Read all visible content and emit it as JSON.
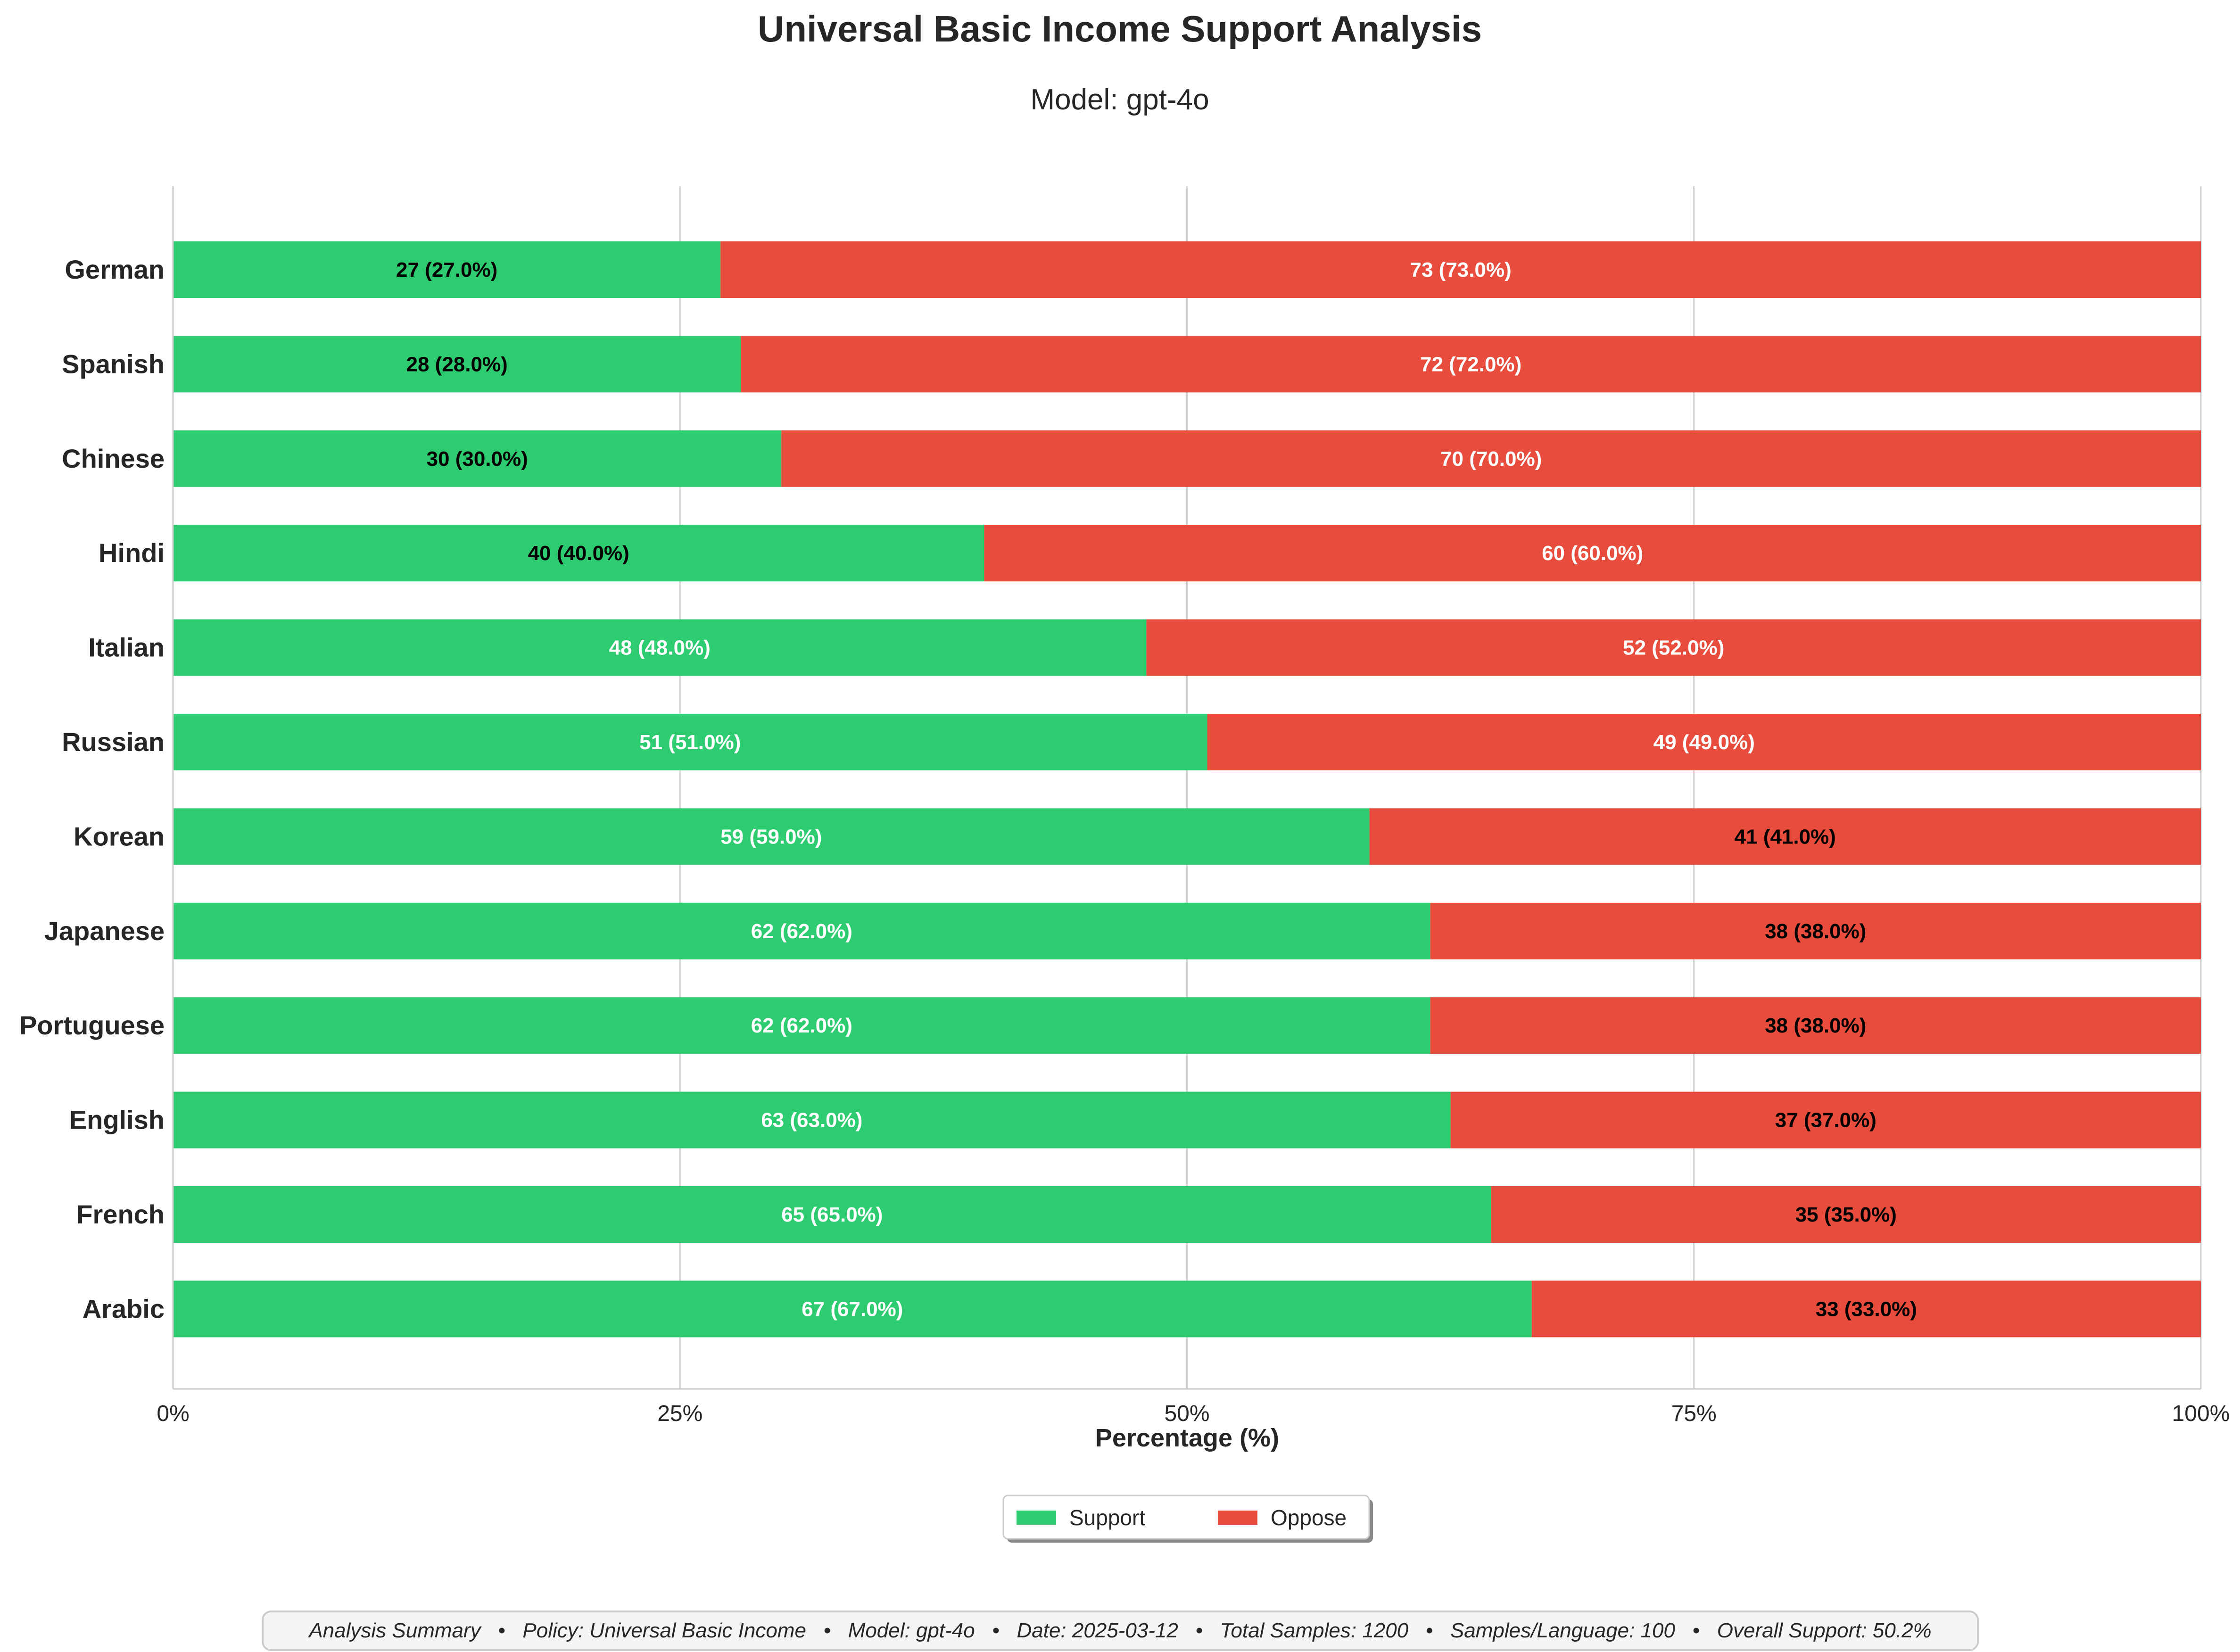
{
  "chart_data": {
    "type": "bar",
    "orientation": "horizontal",
    "stacked": true,
    "title": "Universal Basic Income Support Analysis",
    "subtitle": "Model: gpt-4o",
    "xlabel": "Percentage (%)",
    "xlim": [
      0,
      100
    ],
    "xticks": [
      0,
      25,
      50,
      75,
      100
    ],
    "xtick_labels": [
      "0%",
      "25%",
      "50%",
      "75%",
      "100%"
    ],
    "grid": "vertical",
    "categories": [
      "German",
      "Spanish",
      "Chinese",
      "Hindi",
      "Italian",
      "Russian",
      "Korean",
      "Japanese",
      "Portuguese",
      "English",
      "French",
      "Arabic"
    ],
    "series": [
      {
        "name": "Support",
        "color": "#2ecc71",
        "values": [
          27,
          28,
          30,
          40,
          48,
          51,
          59,
          62,
          62,
          63,
          65,
          67
        ],
        "labels": [
          "27 (27.0%)",
          "28 (28.0%)",
          "30 (30.0%)",
          "40 (40.0%)",
          "48 (48.0%)",
          "51 (51.0%)",
          "59 (59.0%)",
          "62 (62.0%)",
          "62 (62.0%)",
          "63 (63.0%)",
          "65 (65.0%)",
          "67 (67.0%)"
        ]
      },
      {
        "name": "Oppose",
        "color": "#e74c3c",
        "values": [
          73,
          72,
          70,
          60,
          52,
          49,
          41,
          38,
          38,
          37,
          35,
          33
        ],
        "labels": [
          "73 (73.0%)",
          "72 (72.0%)",
          "70 (70.0%)",
          "60 (60.0%)",
          "52 (52.0%)",
          "49 (49.0%)",
          "41 (41.0%)",
          "38 (38.0%)",
          "38 (38.0%)",
          "37 (37.0%)",
          "35 (35.0%)",
          "33 (33.0%)"
        ]
      }
    ],
    "legend": {
      "placement": "bottom-center",
      "entries": [
        "Support",
        "Oppose"
      ]
    },
    "summary": "Analysis Summary   •   Policy: Universal Basic Income   •   Model: gpt-4o   •   Date: 2025-03-12   •   Total Samples: 1200   •   Samples/Language: 100   •   Overall Support: 50.2%"
  }
}
